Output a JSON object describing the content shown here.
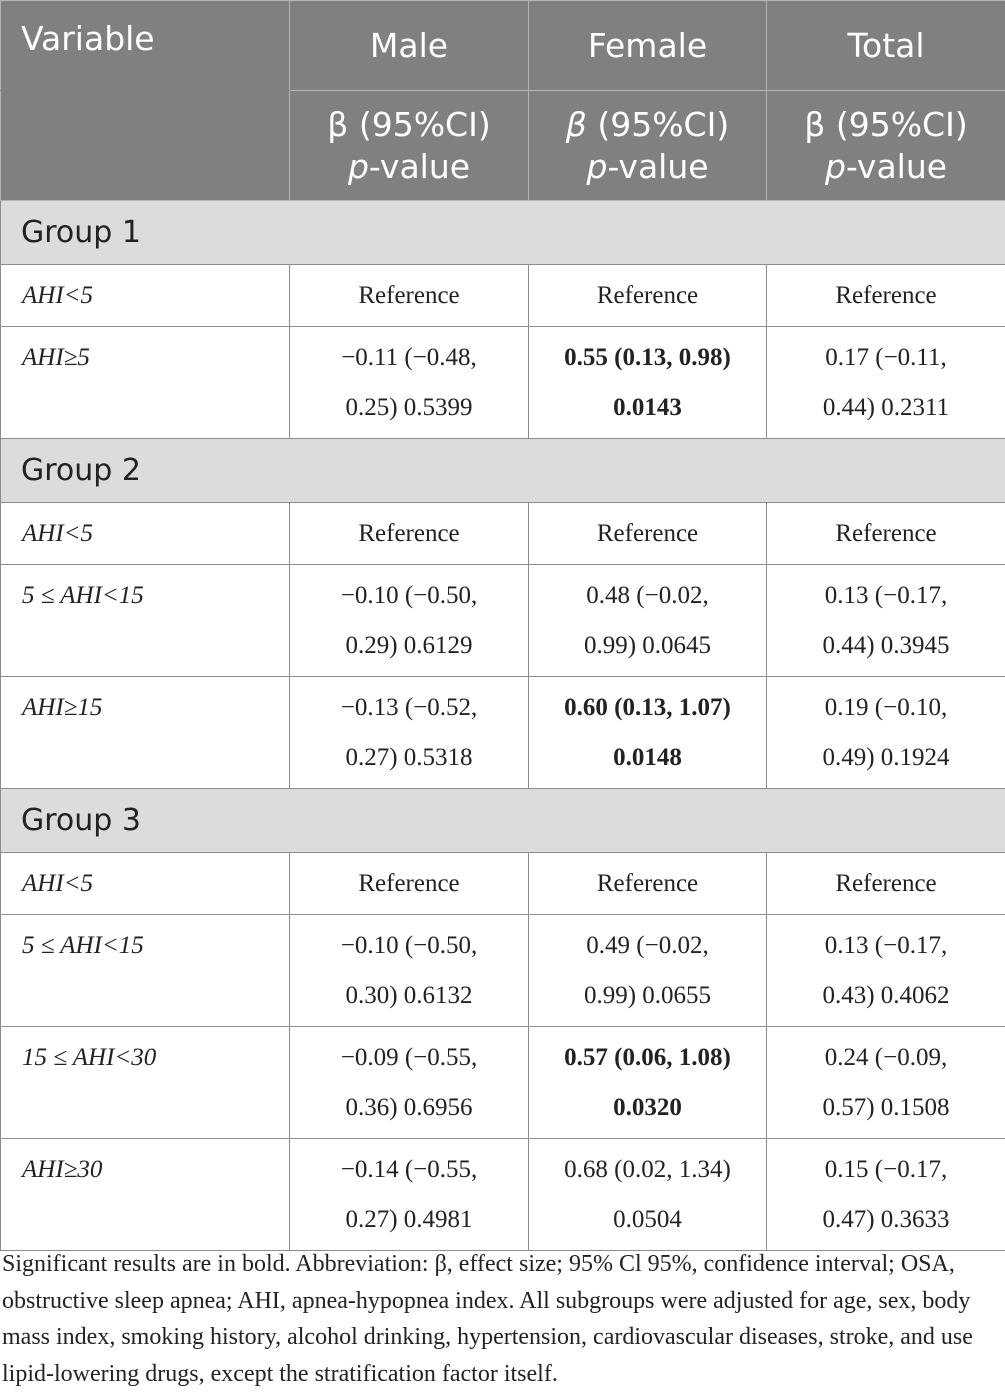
{
  "header": {
    "variable": "Variable",
    "male": "Male",
    "female": "Female",
    "total": "Total",
    "beta_line": "β (95%CI)",
    "p_italic": "p",
    "p_suffix": "-value"
  },
  "groups": [
    {
      "title": "Group 1",
      "rows": [
        {
          "var": "AHI<5",
          "male": [
            "Reference"
          ],
          "female": [
            "Reference"
          ],
          "total": [
            "Reference"
          ]
        },
        {
          "var": "AHI≥5",
          "male": [
            "−0.11 (−0.48,",
            "0.25) 0.5399"
          ],
          "female": [
            "0.55 (0.13, 0.98)",
            "0.0143"
          ],
          "total": [
            "0.17 (−0.11,",
            "0.44) 0.2311"
          ]
        }
      ]
    },
    {
      "title": "Group 2",
      "rows": [
        {
          "var": "AHI<5",
          "male": [
            "Reference"
          ],
          "female": [
            "Reference"
          ],
          "total": [
            "Reference"
          ]
        },
        {
          "var": "5 ≤ AHI<15",
          "male": [
            "−0.10 (−0.50,",
            "0.29) 0.6129"
          ],
          "female": [
            "0.48 (−0.02,",
            "0.99) 0.0645"
          ],
          "total": [
            "0.13 (−0.17,",
            "0.44) 0.3945"
          ]
        },
        {
          "var": "AHI≥15",
          "male": [
            "−0.13 (−0.52,",
            "0.27) 0.5318"
          ],
          "female": [
            "0.60 (0.13, 1.07)",
            "0.0148"
          ],
          "total": [
            "0.19 (−0.10,",
            "0.49) 0.1924"
          ]
        }
      ]
    },
    {
      "title": "Group 3",
      "rows": [
        {
          "var": "AHI<5",
          "male": [
            "Reference"
          ],
          "female": [
            "Reference"
          ],
          "total": [
            "Reference"
          ]
        },
        {
          "var": "5 ≤ AHI<15",
          "male": [
            "−0.10 (−0.50,",
            "0.30) 0.6132"
          ],
          "female": [
            "0.49 (−0.02,",
            "0.99) 0.0655"
          ],
          "total": [
            "0.13 (−0.17,",
            "0.43) 0.4062"
          ]
        },
        {
          "var": "15 ≤ AHI<30",
          "male": [
            "−0.09 (−0.55,",
            "0.36) 0.6956"
          ],
          "female": [
            "0.57 (0.06, 1.08)",
            "0.0320"
          ],
          "total": [
            "0.24 (−0.09,",
            "0.57) 0.1508"
          ]
        },
        {
          "var": "AHI≥30",
          "male": [
            "−0.14 (−0.55,",
            "0.27) 0.4981"
          ],
          "female": [
            "0.68 (0.02, 1.34)",
            "0.0504"
          ],
          "total": [
            "0.15 (−0.17,",
            "0.47) 0.3633"
          ]
        }
      ]
    }
  ],
  "footnote": "Significant results are in bold. Abbreviation: β, effect size; 95% Cl 95%, confidence interval; OSA, obstructive sleep apnea; AHI, apnea-hypopnea index. All subgroups were adjusted for age, sex, body mass index, smoking history, alcohol drinking, hypertension, cardiovascular diseases, stroke, and use lipid-lowering drugs, except the stratification factor itself."
}
